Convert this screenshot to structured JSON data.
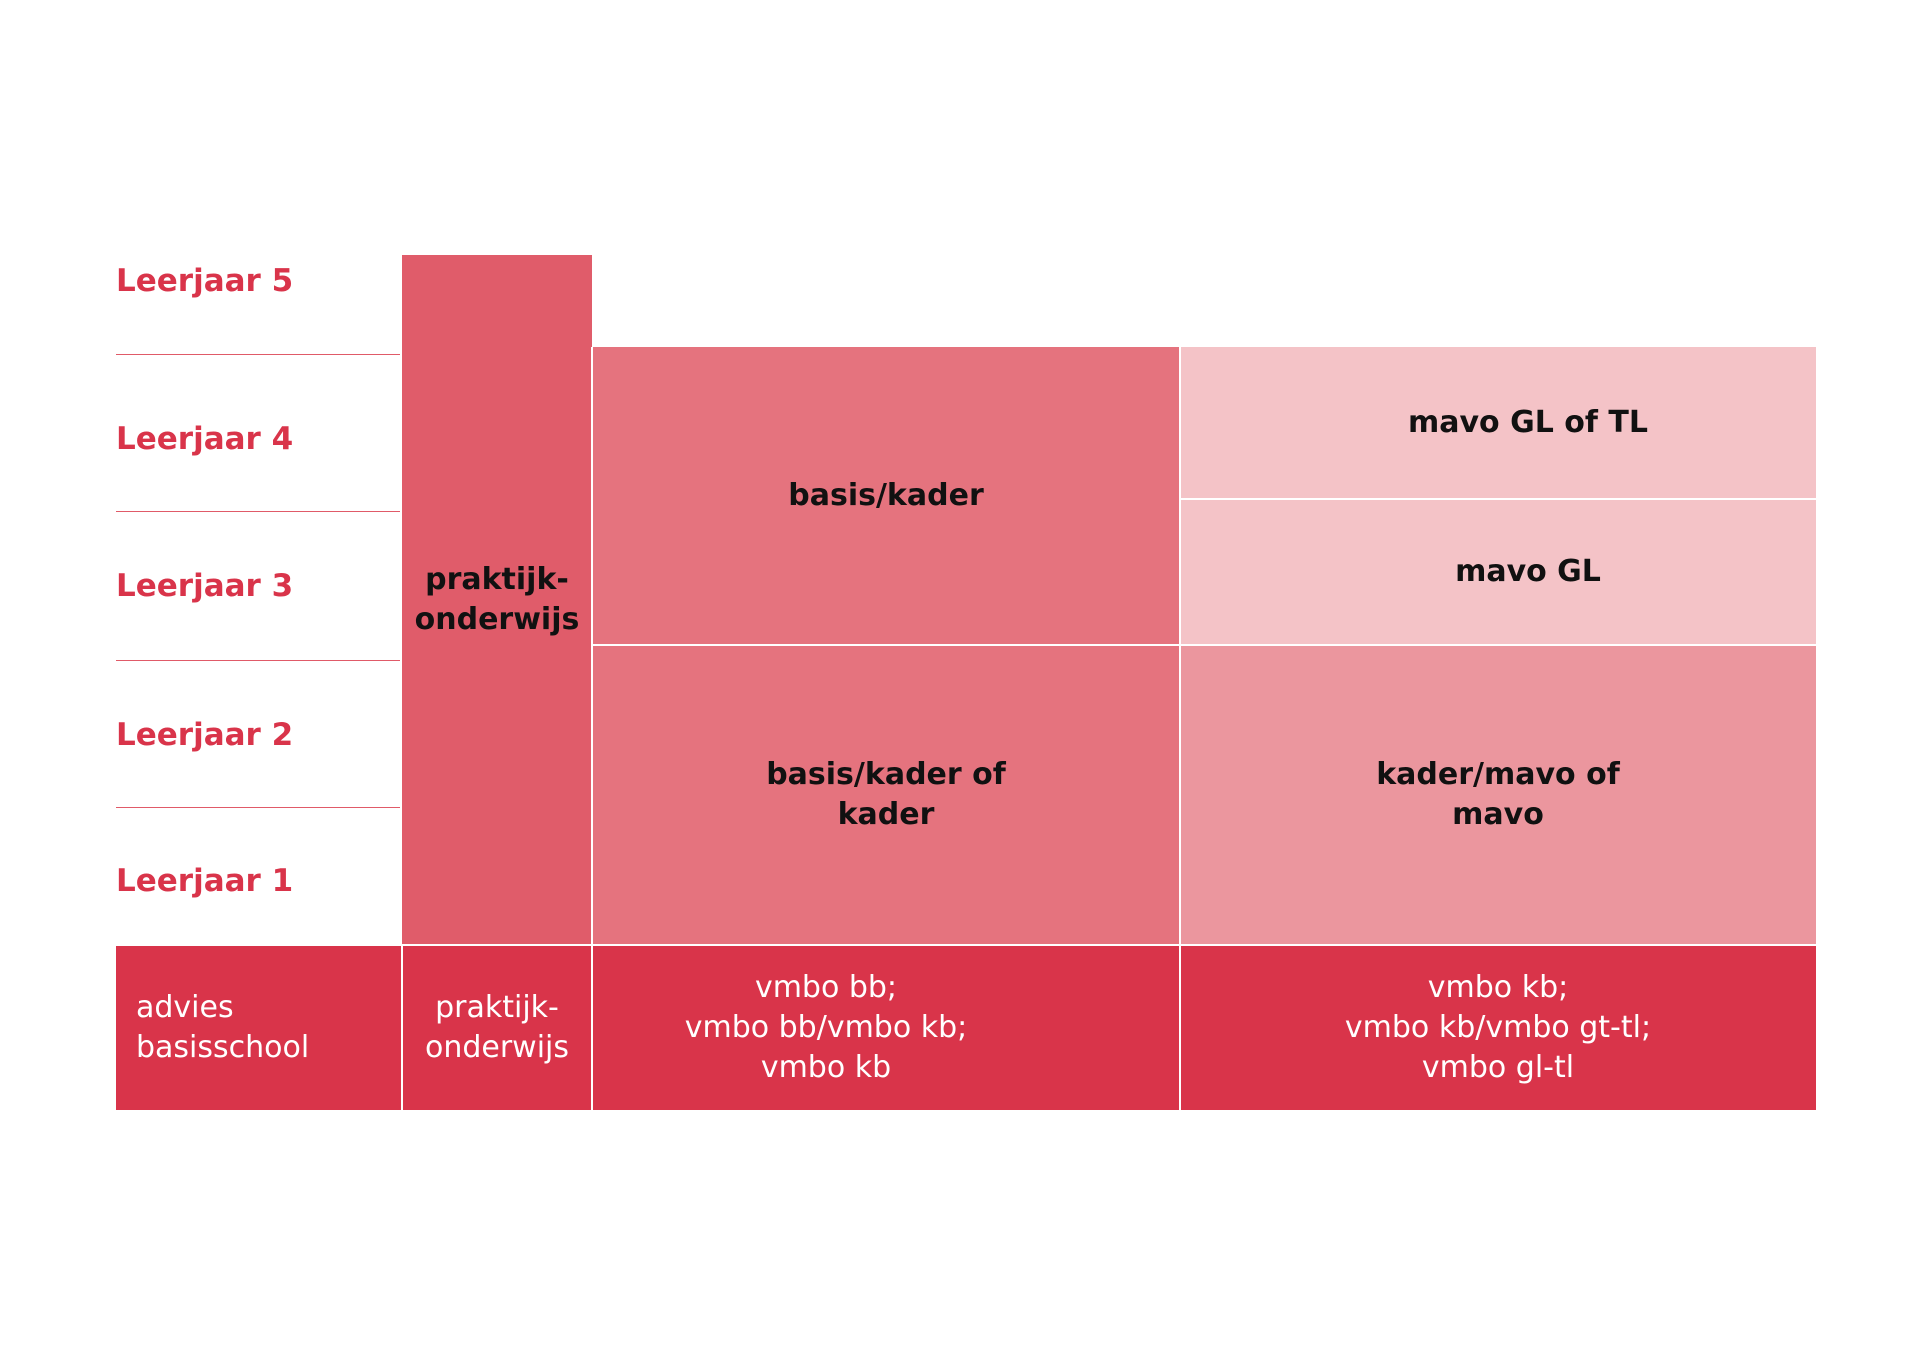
{
  "colors": {
    "accent_red": "#d9344a",
    "praktijk_column": "#e05c6a",
    "vmbo_column": "#e5737e",
    "mavo_lower": "#eb969e",
    "mavo_upper": "#f4c3c7",
    "line": "#e05a68"
  },
  "years": [
    {
      "label": "Leerjaar 5"
    },
    {
      "label": "Leerjaar 4"
    },
    {
      "label": "Leerjaar 3"
    },
    {
      "label": "Leerjaar 2"
    },
    {
      "label": "Leerjaar 1"
    }
  ],
  "columns": {
    "praktijk": {
      "label": "praktijk-\nonderwijs"
    },
    "basis_kader_upper": {
      "label": "basis/kader"
    },
    "basis_kader_lower": {
      "label": "basis/kader of\nkader"
    },
    "mavo_gl_tl": {
      "label": "mavo GL of TL"
    },
    "mavo_gl": {
      "label": "mavo GL"
    },
    "kader_mavo": {
      "label": "kader/mavo of\nmavo"
    }
  },
  "advice_row": {
    "header": "advies\nbasisschool",
    "praktijk": "praktijk-\nonderwijs",
    "vmbo_bb_kb": "vmbo bb;\nvmbo bb/vmbo kb;\nvmbo kb",
    "vmbo_kb_gt": "vmbo kb;\nvmbo kb/vmbo gt-tl;\nvmbo gl-tl"
  }
}
